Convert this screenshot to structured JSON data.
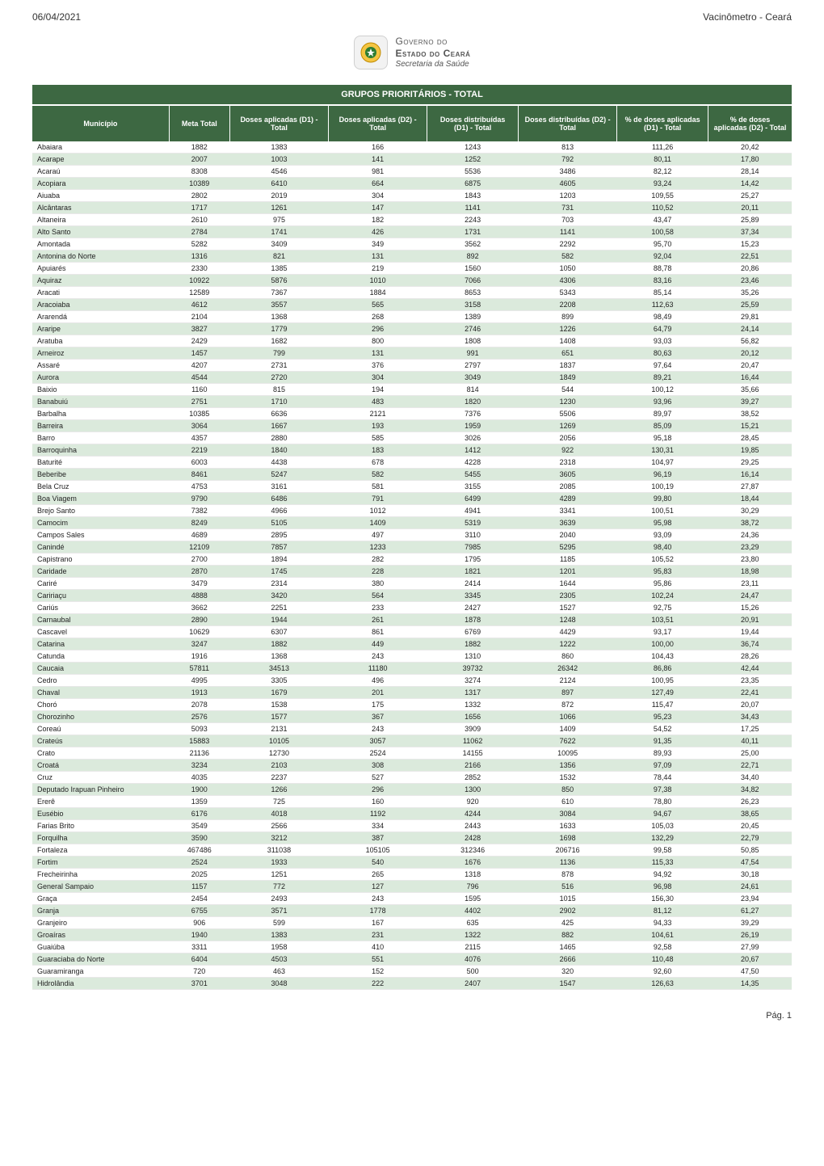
{
  "header": {
    "date": "06/04/2021",
    "title_right": "Vacinômetro - Ceará"
  },
  "logo": {
    "line1": "Governo do",
    "line2": "Estado do Ceará",
    "line3": "Secretaria da Saúde"
  },
  "band_title": "GRUPOS PRIORITÁRIOS - TOTAL",
  "columns": [
    "Município",
    "Meta Total",
    "Doses aplicadas (D1) - Total",
    "Doses aplicadas (D2) - Total",
    "Doses distribuídas (D1) - Total",
    "Doses distribuídas (D2) - Total",
    "% de doses aplicadas (D1)  -  Total",
    "% de doses aplicadas (D2)  -  Total"
  ],
  "style": {
    "header_bg": "#3d6842",
    "header_fg": "#ffffff",
    "row_even_bg": "#dbeadc",
    "row_odd_bg": "#ffffff",
    "font_size_body": 9,
    "font_size_header": 9,
    "col_widths_pct": [
      18,
      8,
      13,
      13,
      12,
      13,
      12,
      11
    ]
  },
  "rows": [
    [
      "Abaiara",
      "1882",
      "1383",
      "166",
      "1243",
      "813",
      "111,26",
      "20,42"
    ],
    [
      "Acarape",
      "2007",
      "1003",
      "141",
      "1252",
      "792",
      "80,11",
      "17,80"
    ],
    [
      "Acaraú",
      "8308",
      "4546",
      "981",
      "5536",
      "3486",
      "82,12",
      "28,14"
    ],
    [
      "Acopiara",
      "10389",
      "6410",
      "664",
      "6875",
      "4605",
      "93,24",
      "14,42"
    ],
    [
      "Aiuaba",
      "2802",
      "2019",
      "304",
      "1843",
      "1203",
      "109,55",
      "25,27"
    ],
    [
      "Alcântaras",
      "1717",
      "1261",
      "147",
      "1141",
      "731",
      "110,52",
      "20,11"
    ],
    [
      "Altaneira",
      "2610",
      "975",
      "182",
      "2243",
      "703",
      "43,47",
      "25,89"
    ],
    [
      "Alto Santo",
      "2784",
      "1741",
      "426",
      "1731",
      "1141",
      "100,58",
      "37,34"
    ],
    [
      "Amontada",
      "5282",
      "3409",
      "349",
      "3562",
      "2292",
      "95,70",
      "15,23"
    ],
    [
      "Antonina do Norte",
      "1316",
      "821",
      "131",
      "892",
      "582",
      "92,04",
      "22,51"
    ],
    [
      "Apuiarés",
      "2330",
      "1385",
      "219",
      "1560",
      "1050",
      "88,78",
      "20,86"
    ],
    [
      "Aquiraz",
      "10922",
      "5876",
      "1010",
      "7066",
      "4306",
      "83,16",
      "23,46"
    ],
    [
      "Aracati",
      "12589",
      "7367",
      "1884",
      "8653",
      "5343",
      "85,14",
      "35,26"
    ],
    [
      "Aracoiaba",
      "4612",
      "3557",
      "565",
      "3158",
      "2208",
      "112,63",
      "25,59"
    ],
    [
      "Ararendá",
      "2104",
      "1368",
      "268",
      "1389",
      "899",
      "98,49",
      "29,81"
    ],
    [
      "Araripe",
      "3827",
      "1779",
      "296",
      "2746",
      "1226",
      "64,79",
      "24,14"
    ],
    [
      "Aratuba",
      "2429",
      "1682",
      "800",
      "1808",
      "1408",
      "93,03",
      "56,82"
    ],
    [
      "Arneiroz",
      "1457",
      "799",
      "131",
      "991",
      "651",
      "80,63",
      "20,12"
    ],
    [
      "Assaré",
      "4207",
      "2731",
      "376",
      "2797",
      "1837",
      "97,64",
      "20,47"
    ],
    [
      "Aurora",
      "4544",
      "2720",
      "304",
      "3049",
      "1849",
      "89,21",
      "16,44"
    ],
    [
      "Baixio",
      "1160",
      "815",
      "194",
      "814",
      "544",
      "100,12",
      "35,66"
    ],
    [
      "Banabuiú",
      "2751",
      "1710",
      "483",
      "1820",
      "1230",
      "93,96",
      "39,27"
    ],
    [
      "Barbalha",
      "10385",
      "6636",
      "2121",
      "7376",
      "5506",
      "89,97",
      "38,52"
    ],
    [
      "Barreira",
      "3064",
      "1667",
      "193",
      "1959",
      "1269",
      "85,09",
      "15,21"
    ],
    [
      "Barro",
      "4357",
      "2880",
      "585",
      "3026",
      "2056",
      "95,18",
      "28,45"
    ],
    [
      "Barroquinha",
      "2219",
      "1840",
      "183",
      "1412",
      "922",
      "130,31",
      "19,85"
    ],
    [
      "Baturité",
      "6003",
      "4438",
      "678",
      "4228",
      "2318",
      "104,97",
      "29,25"
    ],
    [
      "Beberibe",
      "8461",
      "5247",
      "582",
      "5455",
      "3605",
      "96,19",
      "16,14"
    ],
    [
      "Bela Cruz",
      "4753",
      "3161",
      "581",
      "3155",
      "2085",
      "100,19",
      "27,87"
    ],
    [
      "Boa Viagem",
      "9790",
      "6486",
      "791",
      "6499",
      "4289",
      "99,80",
      "18,44"
    ],
    [
      "Brejo Santo",
      "7382",
      "4966",
      "1012",
      "4941",
      "3341",
      "100,51",
      "30,29"
    ],
    [
      "Camocim",
      "8249",
      "5105",
      "1409",
      "5319",
      "3639",
      "95,98",
      "38,72"
    ],
    [
      "Campos Sales",
      "4689",
      "2895",
      "497",
      "3110",
      "2040",
      "93,09",
      "24,36"
    ],
    [
      "Canindé",
      "12109",
      "7857",
      "1233",
      "7985",
      "5295",
      "98,40",
      "23,29"
    ],
    [
      "Capistrano",
      "2700",
      "1894",
      "282",
      "1795",
      "1185",
      "105,52",
      "23,80"
    ],
    [
      "Caridade",
      "2870",
      "1745",
      "228",
      "1821",
      "1201",
      "95,83",
      "18,98"
    ],
    [
      "Cariré",
      "3479",
      "2314",
      "380",
      "2414",
      "1644",
      "95,86",
      "23,11"
    ],
    [
      "Caririaçu",
      "4888",
      "3420",
      "564",
      "3345",
      "2305",
      "102,24",
      "24,47"
    ],
    [
      "Cariús",
      "3662",
      "2251",
      "233",
      "2427",
      "1527",
      "92,75",
      "15,26"
    ],
    [
      "Carnaubal",
      "2890",
      "1944",
      "261",
      "1878",
      "1248",
      "103,51",
      "20,91"
    ],
    [
      "Cascavel",
      "10629",
      "6307",
      "861",
      "6769",
      "4429",
      "93,17",
      "19,44"
    ],
    [
      "Catarina",
      "3247",
      "1882",
      "449",
      "1882",
      "1222",
      "100,00",
      "36,74"
    ],
    [
      "Catunda",
      "1916",
      "1368",
      "243",
      "1310",
      "860",
      "104,43",
      "28,26"
    ],
    [
      "Caucaia",
      "57811",
      "34513",
      "11180",
      "39732",
      "26342",
      "86,86",
      "42,44"
    ],
    [
      "Cedro",
      "4995",
      "3305",
      "496",
      "3274",
      "2124",
      "100,95",
      "23,35"
    ],
    [
      "Chaval",
      "1913",
      "1679",
      "201",
      "1317",
      "897",
      "127,49",
      "22,41"
    ],
    [
      "Choró",
      "2078",
      "1538",
      "175",
      "1332",
      "872",
      "115,47",
      "20,07"
    ],
    [
      "Chorozinho",
      "2576",
      "1577",
      "367",
      "1656",
      "1066",
      "95,23",
      "34,43"
    ],
    [
      "Coreaú",
      "5093",
      "2131",
      "243",
      "3909",
      "1409",
      "54,52",
      "17,25"
    ],
    [
      "Crateús",
      "15883",
      "10105",
      "3057",
      "11062",
      "7622",
      "91,35",
      "40,11"
    ],
    [
      "Crato",
      "21136",
      "12730",
      "2524",
      "14155",
      "10095",
      "89,93",
      "25,00"
    ],
    [
      "Croatá",
      "3234",
      "2103",
      "308",
      "2166",
      "1356",
      "97,09",
      "22,71"
    ],
    [
      "Cruz",
      "4035",
      "2237",
      "527",
      "2852",
      "1532",
      "78,44",
      "34,40"
    ],
    [
      "Deputado Irapuan Pinheiro",
      "1900",
      "1266",
      "296",
      "1300",
      "850",
      "97,38",
      "34,82"
    ],
    [
      "Ererê",
      "1359",
      "725",
      "160",
      "920",
      "610",
      "78,80",
      "26,23"
    ],
    [
      "Eusébio",
      "6176",
      "4018",
      "1192",
      "4244",
      "3084",
      "94,67",
      "38,65"
    ],
    [
      "Farias Brito",
      "3549",
      "2566",
      "334",
      "2443",
      "1633",
      "105,03",
      "20,45"
    ],
    [
      "Forquilha",
      "3590",
      "3212",
      "387",
      "2428",
      "1698",
      "132,29",
      "22,79"
    ],
    [
      "Fortaleza",
      "467486",
      "311038",
      "105105",
      "312346",
      "206716",
      "99,58",
      "50,85"
    ],
    [
      "Fortim",
      "2524",
      "1933",
      "540",
      "1676",
      "1136",
      "115,33",
      "47,54"
    ],
    [
      "Frecheirinha",
      "2025",
      "1251",
      "265",
      "1318",
      "878",
      "94,92",
      "30,18"
    ],
    [
      "General Sampaio",
      "1157",
      "772",
      "127",
      "796",
      "516",
      "96,98",
      "24,61"
    ],
    [
      "Graça",
      "2454",
      "2493",
      "243",
      "1595",
      "1015",
      "156,30",
      "23,94"
    ],
    [
      "Granja",
      "6755",
      "3571",
      "1778",
      "4402",
      "2902",
      "81,12",
      "61,27"
    ],
    [
      "Granjeiro",
      "906",
      "599",
      "167",
      "635",
      "425",
      "94,33",
      "39,29"
    ],
    [
      "Groaíras",
      "1940",
      "1383",
      "231",
      "1322",
      "882",
      "104,61",
      "26,19"
    ],
    [
      "Guaiúba",
      "3311",
      "1958",
      "410",
      "2115",
      "1465",
      "92,58",
      "27,99"
    ],
    [
      "Guaraciaba do Norte",
      "6404",
      "4503",
      "551",
      "4076",
      "2666",
      "110,48",
      "20,67"
    ],
    [
      "Guaramiranga",
      "720",
      "463",
      "152",
      "500",
      "320",
      "92,60",
      "47,50"
    ],
    [
      "Hidrolândia",
      "3701",
      "3048",
      "222",
      "2407",
      "1547",
      "126,63",
      "14,35"
    ]
  ],
  "footer": {
    "page_label": "Pág. 1"
  }
}
